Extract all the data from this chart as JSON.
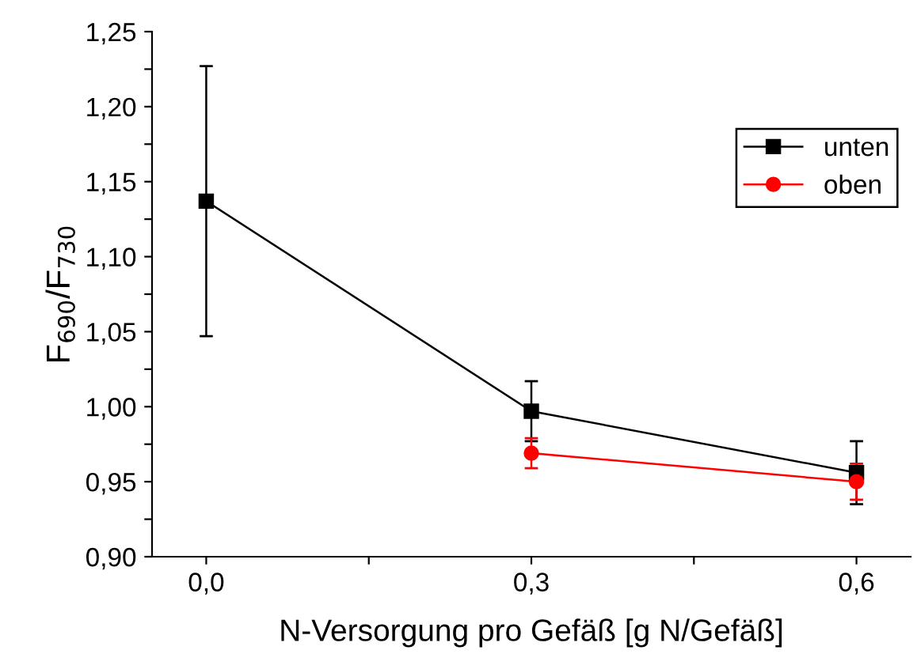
{
  "chart_data": {
    "type": "line",
    "xlabel": "N-Versorgung pro Gefäß [g N/Gefäß]",
    "ylabel": "F$_{690}$/F$_{730}$",
    "series": [
      {
        "name": "unten",
        "color": "#000000",
        "marker": "square",
        "x": [
          0.0,
          0.3,
          0.6
        ],
        "values": [
          1.137,
          0.997,
          0.956
        ],
        "errors": [
          0.09,
          0.02,
          0.021
        ]
      },
      {
        "name": "oben",
        "color": "#ff0000",
        "marker": "circle",
        "x": [
          0.3,
          0.6
        ],
        "values": [
          0.969,
          0.95
        ],
        "errors": [
          0.01,
          0.012
        ]
      }
    ],
    "xlim": [
      -0.05,
      0.65
    ],
    "xticks": [
      {
        "value": 0.0,
        "label": "0,0"
      },
      {
        "value": 0.15,
        "label": null
      },
      {
        "value": 0.3,
        "label": "0,3"
      },
      {
        "value": 0.45,
        "label": null
      },
      {
        "value": 0.6,
        "label": "0,6"
      }
    ],
    "ylim": [
      0.9,
      1.25
    ],
    "yticks": [
      {
        "value": 0.9,
        "label": "0,90"
      },
      {
        "value": 0.925,
        "label": null
      },
      {
        "value": 0.95,
        "label": "0,95"
      },
      {
        "value": 0.975,
        "label": null
      },
      {
        "value": 1.0,
        "label": "1,00"
      },
      {
        "value": 1.025,
        "label": null
      },
      {
        "value": 1.05,
        "label": "1,05"
      },
      {
        "value": 1.075,
        "label": null
      },
      {
        "value": 1.1,
        "label": "1,10"
      },
      {
        "value": 1.125,
        "label": null
      },
      {
        "value": 1.15,
        "label": "1,15"
      },
      {
        "value": 1.175,
        "label": null
      },
      {
        "value": 1.2,
        "label": "1,20"
      },
      {
        "value": 1.225,
        "label": null
      },
      {
        "value": 1.25,
        "label": "1,25"
      }
    ],
    "grid": false,
    "legend": "top right",
    "line_style": "solid"
  }
}
